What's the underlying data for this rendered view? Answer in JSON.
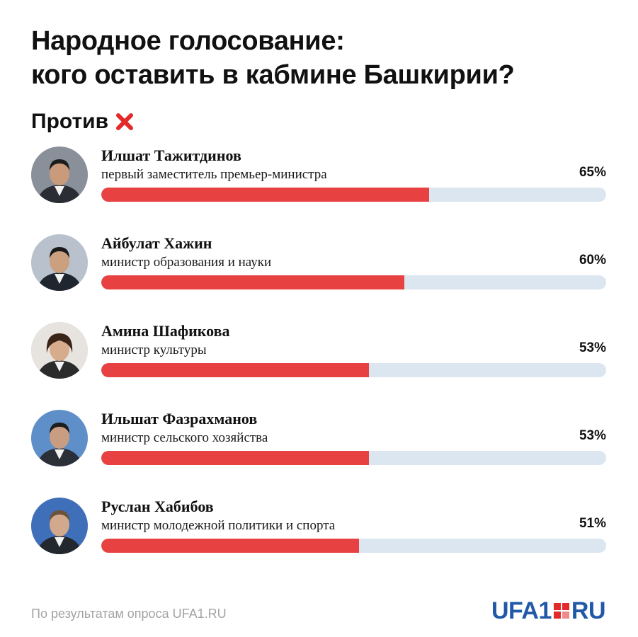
{
  "title_line1": "Народное голосование:",
  "title_line2": "кого оставить в кабмине Башкирии?",
  "subhead": "Против",
  "footer": "По результатам опроса UFA1.RU",
  "logo": {
    "left": "UFA1",
    "right": "RU"
  },
  "colors": {
    "fill": "#e84141",
    "track": "#dbe6f1",
    "logo": "#2159a8"
  },
  "chart_data": {
    "type": "bar",
    "categories": [
      "Илшат Тажитдинов",
      "Айбулат Хажин",
      "Амина Шафикова",
      "Ильшат Фазрахманов",
      "Руслан Хабибов"
    ],
    "values": [
      65,
      60,
      53,
      53,
      51
    ],
    "ylim": [
      0,
      100
    ]
  },
  "rows": [
    {
      "name": "Илшат Тажитдинов",
      "role": "первый заместитель премьер-министра",
      "pct_label": "65%",
      "value": 65
    },
    {
      "name": "Айбулат Хажин",
      "role": "министр образования и науки",
      "pct_label": "60%",
      "value": 60
    },
    {
      "name": "Амина Шафикова",
      "role": "министр культуры",
      "pct_label": "53%",
      "value": 53
    },
    {
      "name": "Ильшат Фазрахманов",
      "role": "министр сельского хозяйства",
      "pct_label": "53%",
      "value": 53
    },
    {
      "name": "Руслан Хабибов",
      "role": "министр молодежной политики и спорта",
      "pct_label": "51%",
      "value": 51
    }
  ]
}
